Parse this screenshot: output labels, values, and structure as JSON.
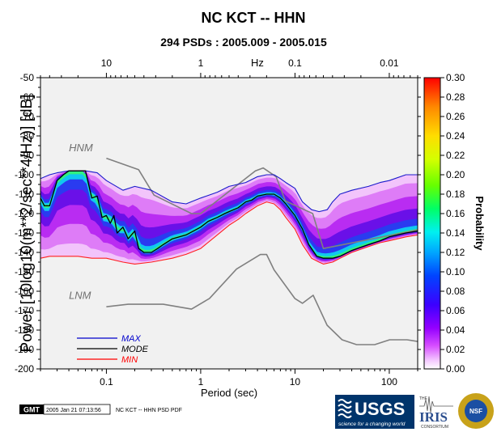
{
  "chart_data": {
    "type": "heatmap",
    "title": "NC KCT -- HHN",
    "subtitle": "294 PSDs : 2005.009 - 2005.015",
    "xlabel": "Period (sec)",
    "ylabel": "Power [10log10(m**2/sec**4/Hz)] [dB]",
    "top_axis_unit": "Hz",
    "x_scale": "log",
    "xlim": [
      0.02,
      200
    ],
    "ylim": [
      -200,
      -50
    ],
    "x_ticks": [
      0.1,
      1,
      10,
      100
    ],
    "x_tick_labels": [
      "0.1",
      "1",
      "10",
      "100"
    ],
    "top_ticks": [
      10,
      1,
      0.1,
      0.01
    ],
    "top_tick_labels": [
      "10",
      "1",
      "0.1",
      "0.01"
    ],
    "y_ticks": [
      -50,
      -60,
      -70,
      -80,
      -90,
      -100,
      -110,
      -120,
      -130,
      -140,
      -150,
      -160,
      -170,
      -180,
      -190,
      -200
    ],
    "y_tick_labels": [
      "-50",
      "-60",
      "-70",
      "-80",
      "-90",
      "-100",
      "-110",
      "-120",
      "-130",
      "-140",
      "-150",
      "-160",
      "-170",
      "-180",
      "-190",
      "-200"
    ],
    "colorbar": {
      "label": "Probability",
      "range": [
        0,
        0.3
      ],
      "ticks": [
        0.0,
        0.02,
        0.04,
        0.06,
        0.08,
        0.1,
        0.12,
        0.14,
        0.16,
        0.18,
        0.2,
        0.22,
        0.24,
        0.26,
        0.28,
        0.3
      ],
      "tick_labels": [
        "0.00",
        "0.02",
        "0.04",
        "0.06",
        "0.08",
        "0.10",
        "0.12",
        "0.14",
        "0.16",
        "0.18",
        "0.20",
        "0.22",
        "0.24",
        "0.26",
        "0.28",
        "0.30"
      ],
      "colors": [
        "#ffffff",
        "#ee66ff",
        "#aa00ff",
        "#3a00ff",
        "#0033ff",
        "#00a6ff",
        "#00ffee",
        "#00ff55",
        "#88ff00",
        "#ffee00",
        "#ff9900",
        "#ff0000"
      ]
    },
    "legend": {
      "placement": "bottom-left",
      "items": [
        {
          "name": "MAX",
          "color": "#0000cc"
        },
        {
          "name": "MODE",
          "color": "#000000"
        },
        {
          "name": "MIN",
          "color": "#ff0000"
        }
      ]
    },
    "series": [
      {
        "name": "MAX",
        "color": "#1a1acc",
        "points": [
          [
            0.02,
            -102
          ],
          [
            0.025,
            -100
          ],
          [
            0.03,
            -99
          ],
          [
            0.04,
            -98
          ],
          [
            0.06,
            -98
          ],
          [
            0.08,
            -99
          ],
          [
            0.1,
            -103
          ],
          [
            0.15,
            -108
          ],
          [
            0.2,
            -106
          ],
          [
            0.3,
            -108
          ],
          [
            0.5,
            -114
          ],
          [
            0.7,
            -115
          ],
          [
            1,
            -112
          ],
          [
            1.5,
            -109
          ],
          [
            2,
            -106
          ],
          [
            3,
            -104
          ],
          [
            4,
            -101
          ],
          [
            5,
            -100
          ],
          [
            6,
            -100
          ],
          [
            7,
            -102
          ],
          [
            8,
            -104
          ],
          [
            10,
            -107
          ],
          [
            12,
            -114
          ],
          [
            15,
            -118
          ],
          [
            18,
            -119
          ],
          [
            22,
            -118
          ],
          [
            25,
            -114
          ],
          [
            30,
            -110
          ],
          [
            40,
            -108
          ],
          [
            60,
            -106
          ],
          [
            80,
            -104
          ],
          [
            100,
            -103
          ],
          [
            150,
            -100
          ],
          [
            200,
            -100
          ]
        ]
      },
      {
        "name": "MODE",
        "color": "#000000",
        "points": [
          [
            0.02,
            -112
          ],
          [
            0.022,
            -116
          ],
          [
            0.025,
            -116
          ],
          [
            0.03,
            -103
          ],
          [
            0.035,
            -100
          ],
          [
            0.04,
            -98
          ],
          [
            0.045,
            -98
          ],
          [
            0.05,
            -98
          ],
          [
            0.055,
            -98
          ],
          [
            0.06,
            -98
          ],
          [
            0.07,
            -112
          ],
          [
            0.08,
            -111
          ],
          [
            0.09,
            -122
          ],
          [
            0.1,
            -121
          ],
          [
            0.11,
            -125
          ],
          [
            0.12,
            -121
          ],
          [
            0.13,
            -130
          ],
          [
            0.15,
            -127
          ],
          [
            0.17,
            -133
          ],
          [
            0.2,
            -129
          ],
          [
            0.22,
            -138
          ],
          [
            0.25,
            -140
          ],
          [
            0.3,
            -140
          ],
          [
            0.35,
            -138
          ],
          [
            0.4,
            -136
          ],
          [
            0.5,
            -133
          ],
          [
            0.7,
            -131
          ],
          [
            1,
            -127
          ],
          [
            1.2,
            -124
          ],
          [
            1.5,
            -122
          ],
          [
            1.8,
            -120
          ],
          [
            2,
            -119
          ],
          [
            2.5,
            -117
          ],
          [
            3,
            -114
          ],
          [
            3.5,
            -113
          ],
          [
            4,
            -111
          ],
          [
            5,
            -110
          ],
          [
            6,
            -110
          ],
          [
            7,
            -112
          ],
          [
            8,
            -115
          ],
          [
            10,
            -121
          ],
          [
            12,
            -128
          ],
          [
            14,
            -136
          ],
          [
            17,
            -142
          ],
          [
            20,
            -143
          ],
          [
            25,
            -143
          ],
          [
            30,
            -142
          ],
          [
            40,
            -139
          ],
          [
            60,
            -136
          ],
          [
            80,
            -134
          ],
          [
            100,
            -132
          ],
          [
            150,
            -130
          ],
          [
            200,
            -129
          ]
        ]
      },
      {
        "name": "MIN",
        "color": "#ff2020",
        "points": [
          [
            0.02,
            -143
          ],
          [
            0.025,
            -142
          ],
          [
            0.03,
            -142
          ],
          [
            0.05,
            -142
          ],
          [
            0.07,
            -143
          ],
          [
            0.1,
            -143
          ],
          [
            0.15,
            -145
          ],
          [
            0.2,
            -146
          ],
          [
            0.3,
            -145
          ],
          [
            0.5,
            -143
          ],
          [
            0.7,
            -141
          ],
          [
            1,
            -138
          ],
          [
            1.5,
            -131
          ],
          [
            2,
            -126
          ],
          [
            2.5,
            -123
          ],
          [
            3,
            -120
          ],
          [
            4,
            -116
          ],
          [
            5,
            -114
          ],
          [
            6,
            -115
          ],
          [
            7,
            -118
          ],
          [
            8,
            -122
          ],
          [
            10,
            -128
          ],
          [
            12,
            -136
          ],
          [
            15,
            -143
          ],
          [
            18,
            -145
          ],
          [
            20,
            -146
          ],
          [
            25,
            -145
          ],
          [
            30,
            -143
          ],
          [
            40,
            -140
          ],
          [
            60,
            -137
          ],
          [
            80,
            -135
          ],
          [
            100,
            -134
          ],
          [
            150,
            -132
          ],
          [
            200,
            -131
          ]
        ]
      },
      {
        "name": "HNM",
        "color": "#808080",
        "points": [
          [
            0.1,
            -91.5
          ],
          [
            0.22,
            -97.4
          ],
          [
            0.32,
            -110.5
          ],
          [
            0.8,
            -120
          ],
          [
            1.0,
            -120
          ],
          [
            3.8,
            -98
          ],
          [
            4.6,
            -96.5
          ],
          [
            6.3,
            -101
          ],
          [
            7.9,
            -113.5
          ],
          [
            15.4,
            -120
          ],
          [
            20,
            -138
          ],
          [
            354,
            -126
          ]
        ]
      },
      {
        "name": "LNM",
        "color": "#808080",
        "points": [
          [
            0.1,
            -168
          ],
          [
            0.17,
            -166.7
          ],
          [
            0.4,
            -166.7
          ],
          [
            0.8,
            -169.2
          ],
          [
            1.24,
            -163.7
          ],
          [
            2.4,
            -148.6
          ],
          [
            4.3,
            -141.1
          ],
          [
            5.0,
            -141.1
          ],
          [
            6.0,
            -149
          ],
          [
            10,
            -163.8
          ],
          [
            12,
            -166.2
          ],
          [
            15.6,
            -162.1
          ],
          [
            21.9,
            -177.5
          ],
          [
            31.6,
            -185
          ],
          [
            45,
            -187.5
          ],
          [
            70,
            -187.5
          ],
          [
            101,
            -185
          ],
          [
            154,
            -185
          ],
          [
            328,
            -187.5
          ]
        ]
      }
    ],
    "annotations": [
      {
        "text": "HNM",
        "x": 0.04,
        "y": -88
      },
      {
        "text": "LNM",
        "x": 0.04,
        "y": -164
      }
    ]
  },
  "footer": {
    "gmt_badge": "GMT",
    "timestamp": "2005 Jan 21 07:13:56",
    "caption": "NC KCT -- HHN PSD PDF"
  },
  "logos": {
    "usgs_text": "USGS",
    "usgs_tagline": "science for a changing world",
    "iris_the": "THE",
    "iris_text": "IRIS",
    "iris_consortium": "CONSORTIUM",
    "nsf_text": "NSF"
  }
}
